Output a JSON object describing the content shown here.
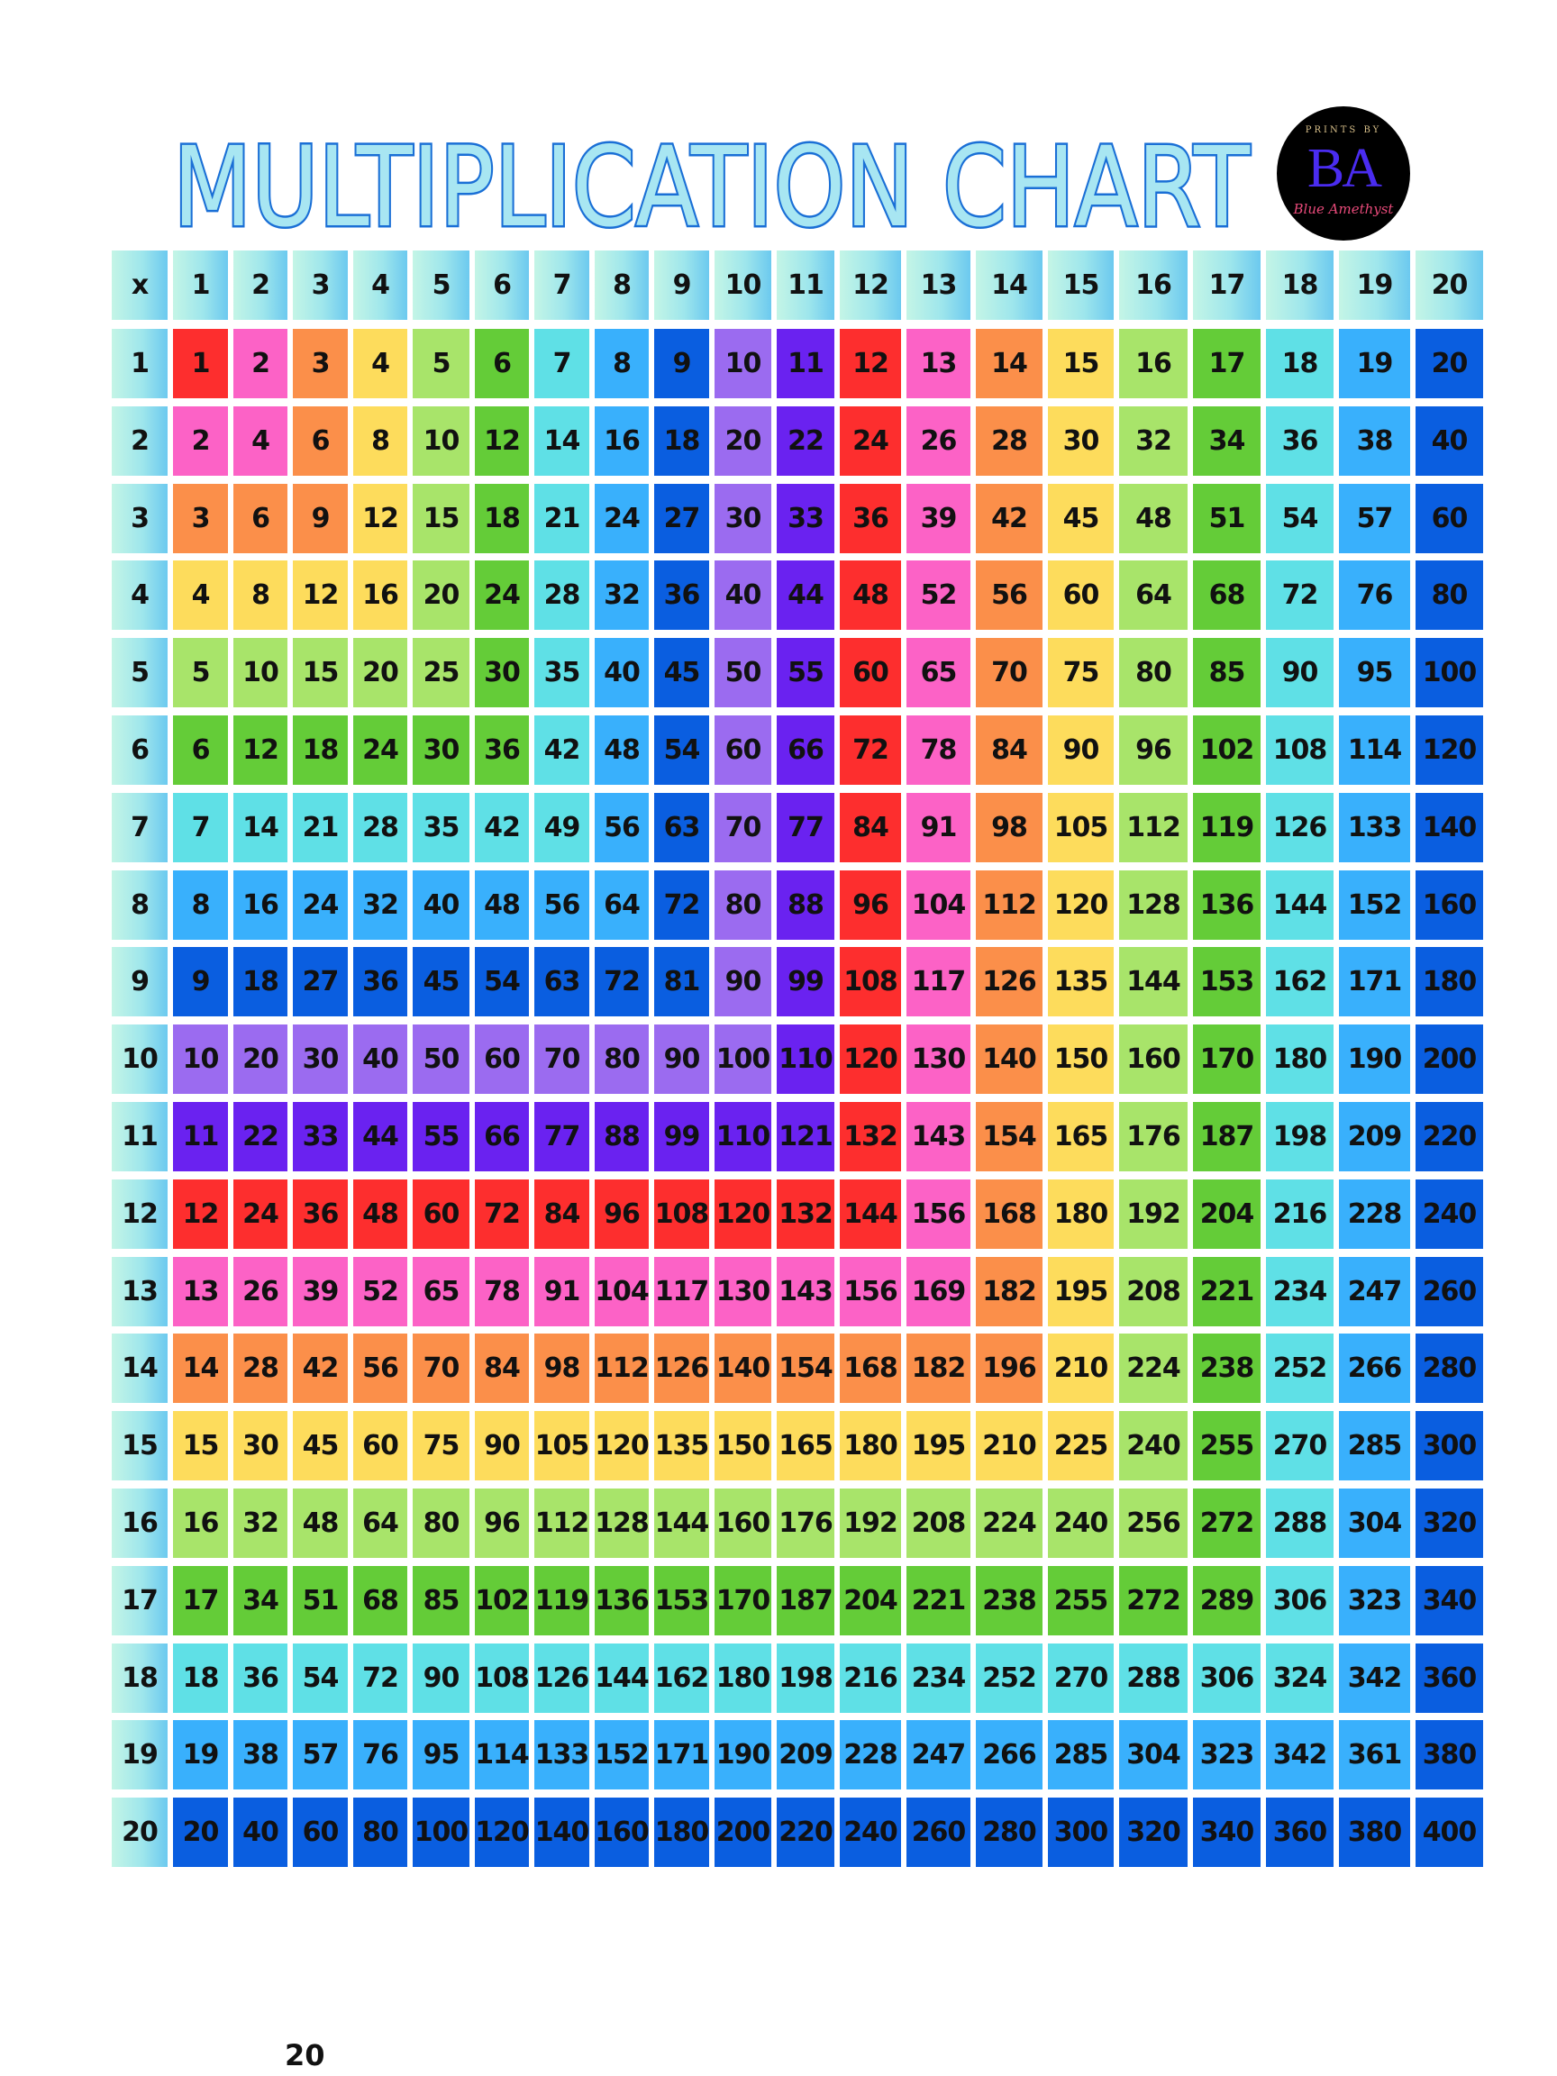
{
  "title": "MULTIPLICATION CHART",
  "logo": {
    "top_text": "PRINTS BY",
    "initials": "BA",
    "script_text": "Blue Amethyst"
  },
  "corner_label": "x",
  "column_headers": [
    1,
    2,
    3,
    4,
    5,
    6,
    7,
    8,
    9,
    10,
    11,
    12,
    13,
    14,
    15,
    16,
    17,
    18,
    19,
    20
  ],
  "row_headers": [
    1,
    2,
    3,
    4,
    5,
    6,
    7,
    8,
    9,
    10,
    11,
    12,
    13,
    14,
    15,
    16,
    17,
    18,
    19,
    20
  ],
  "rows": [
    [
      1,
      2,
      3,
      4,
      5,
      6,
      7,
      8,
      9,
      10,
      11,
      12,
      13,
      14,
      15,
      16,
      17,
      18,
      19,
      20
    ],
    [
      2,
      4,
      6,
      8,
      10,
      12,
      14,
      16,
      18,
      20,
      22,
      24,
      26,
      28,
      30,
      32,
      34,
      36,
      38,
      40
    ],
    [
      3,
      6,
      9,
      12,
      15,
      18,
      21,
      24,
      27,
      30,
      33,
      36,
      39,
      42,
      45,
      48,
      51,
      54,
      57,
      60
    ],
    [
      4,
      8,
      12,
      16,
      20,
      24,
      28,
      32,
      36,
      40,
      44,
      48,
      52,
      56,
      60,
      64,
      68,
      72,
      76,
      80
    ],
    [
      5,
      10,
      15,
      20,
      25,
      30,
      35,
      40,
      45,
      50,
      55,
      60,
      65,
      70,
      75,
      80,
      85,
      90,
      95,
      100
    ],
    [
      6,
      12,
      18,
      24,
      30,
      36,
      42,
      48,
      54,
      60,
      66,
      72,
      78,
      84,
      90,
      96,
      102,
      108,
      114,
      120
    ],
    [
      7,
      14,
      21,
      28,
      35,
      42,
      49,
      56,
      63,
      70,
      77,
      84,
      91,
      98,
      105,
      112,
      119,
      126,
      133,
      140
    ],
    [
      8,
      16,
      24,
      32,
      40,
      48,
      56,
      64,
      72,
      80,
      88,
      96,
      104,
      112,
      120,
      128,
      136,
      144,
      152,
      160
    ],
    [
      9,
      18,
      27,
      36,
      45,
      54,
      63,
      72,
      81,
      90,
      99,
      108,
      117,
      126,
      135,
      144,
      153,
      162,
      171,
      180
    ],
    [
      10,
      20,
      30,
      40,
      50,
      60,
      70,
      80,
      90,
      100,
      110,
      120,
      130,
      140,
      150,
      160,
      170,
      180,
      190,
      200
    ],
    [
      11,
      22,
      33,
      44,
      55,
      66,
      77,
      88,
      99,
      110,
      121,
      132,
      143,
      154,
      165,
      176,
      187,
      198,
      209,
      220
    ],
    [
      12,
      24,
      36,
      48,
      60,
      72,
      84,
      96,
      108,
      120,
      132,
      144,
      156,
      168,
      180,
      192,
      204,
      216,
      228,
      240
    ],
    [
      13,
      26,
      39,
      52,
      65,
      78,
      91,
      104,
      117,
      130,
      143,
      156,
      169,
      182,
      195,
      208,
      221,
      234,
      247,
      260
    ],
    [
      14,
      28,
      42,
      56,
      70,
      84,
      98,
      112,
      126,
      140,
      154,
      168,
      182,
      196,
      210,
      224,
      238,
      252,
      266,
      280
    ],
    [
      15,
      30,
      45,
      60,
      75,
      90,
      105,
      120,
      135,
      150,
      165,
      180,
      195,
      210,
      225,
      240,
      255,
      270,
      285,
      300
    ],
    [
      16,
      32,
      48,
      64,
      80,
      96,
      112,
      128,
      144,
      160,
      176,
      192,
      208,
      224,
      240,
      256,
      272,
      288,
      304,
      320
    ],
    [
      17,
      34,
      51,
      68,
      85,
      102,
      119,
      136,
      153,
      170,
      187,
      204,
      221,
      238,
      255,
      272,
      289,
      306,
      323,
      340
    ],
    [
      18,
      36,
      54,
      72,
      90,
      108,
      126,
      144,
      162,
      180,
      198,
      216,
      234,
      252,
      270,
      288,
      306,
      324,
      342,
      360
    ],
    [
      19,
      38,
      57,
      76,
      95,
      114,
      133,
      152,
      171,
      190,
      209,
      228,
      247,
      266,
      285,
      304,
      323,
      342,
      361,
      380
    ],
    [
      20,
      40,
      60,
      80,
      100,
      120,
      140,
      160,
      180,
      200,
      220,
      240,
      260,
      280,
      300,
      320,
      340,
      360,
      380,
      400
    ]
  ],
  "palette": [
    "#fd2e2e",
    "#fc62c6",
    "#fb8f4a",
    "#fddc5c",
    "#a8e46a",
    "#64cc38",
    "#5fe0e6",
    "#39b0fc",
    "#0a5ee0",
    "#9b6bf0",
    "#6a22f0"
  ],
  "colors": {
    "title_fill": "#a8e6f2",
    "title_stroke": "#1a6fd6"
  },
  "page_number": "20"
}
